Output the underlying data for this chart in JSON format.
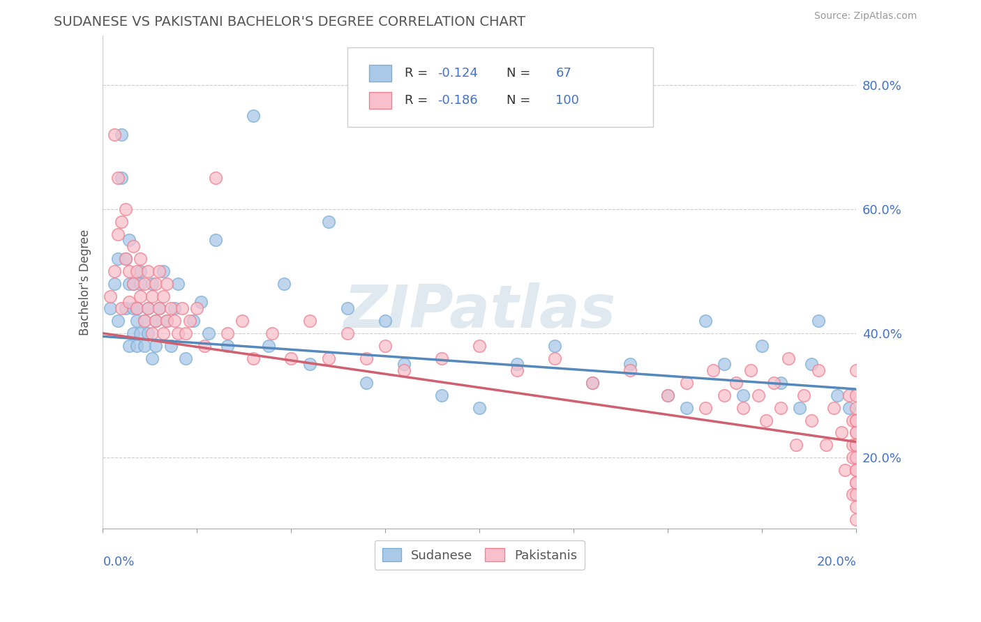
{
  "title": "SUDANESE VS PAKISTANI BACHELOR'S DEGREE CORRELATION CHART",
  "source": "Source: ZipAtlas.com",
  "ylabel": "Bachelor's Degree",
  "watermark": "ZIPatlas",
  "blue_color": "#7bafd4",
  "pink_color": "#f08090",
  "blue_scatter_face": "#aac8e8",
  "blue_scatter_edge": "#7bafd4",
  "pink_scatter_face": "#f8c0cc",
  "pink_scatter_edge": "#f08090",
  "blue_line_color": "#5588bb",
  "pink_line_color": "#d06070",
  "title_color": "#555555",
  "axis_label_color": "#4472c4",
  "text_color": "#555555",
  "grid_color": "#cccccc",
  "legend_color": "#4472c4",
  "R_blue": "-0.124",
  "N_blue": "67",
  "R_pink": "-0.186",
  "N_pink": "100",
  "legend_blue_label": "Sudanese",
  "legend_pink_label": "Pakistanis",
  "xlim": [
    0.0,
    0.2
  ],
  "ylim": [
    0.085,
    0.88
  ],
  "yticks": [
    0.2,
    0.4,
    0.6,
    0.8
  ],
  "xticks": [
    0.0,
    0.025,
    0.05,
    0.075,
    0.1,
    0.125,
    0.15,
    0.175,
    0.2
  ],
  "blue_line_x": [
    0.0,
    0.2
  ],
  "blue_line_y": [
    0.395,
    0.31
  ],
  "pink_line_x": [
    0.0,
    0.2
  ],
  "pink_line_y": [
    0.4,
    0.225
  ],
  "blue_x": [
    0.002,
    0.003,
    0.004,
    0.004,
    0.005,
    0.005,
    0.006,
    0.006,
    0.007,
    0.007,
    0.007,
    0.008,
    0.008,
    0.008,
    0.009,
    0.009,
    0.009,
    0.01,
    0.01,
    0.01,
    0.011,
    0.011,
    0.012,
    0.012,
    0.013,
    0.013,
    0.014,
    0.014,
    0.015,
    0.016,
    0.017,
    0.018,
    0.019,
    0.02,
    0.022,
    0.024,
    0.026,
    0.028,
    0.03,
    0.033,
    0.04,
    0.044,
    0.048,
    0.055,
    0.06,
    0.065,
    0.07,
    0.075,
    0.08,
    0.09,
    0.1,
    0.11,
    0.12,
    0.13,
    0.14,
    0.15,
    0.155,
    0.16,
    0.165,
    0.17,
    0.175,
    0.18,
    0.185,
    0.188,
    0.19,
    0.195,
    0.198
  ],
  "blue_y": [
    0.44,
    0.48,
    0.42,
    0.52,
    0.65,
    0.72,
    0.44,
    0.52,
    0.48,
    0.38,
    0.55,
    0.44,
    0.4,
    0.48,
    0.42,
    0.38,
    0.44,
    0.48,
    0.4,
    0.5,
    0.42,
    0.38,
    0.44,
    0.4,
    0.36,
    0.48,
    0.42,
    0.38,
    0.44,
    0.5,
    0.42,
    0.38,
    0.44,
    0.48,
    0.36,
    0.42,
    0.45,
    0.4,
    0.55,
    0.38,
    0.75,
    0.38,
    0.48,
    0.35,
    0.58,
    0.44,
    0.32,
    0.42,
    0.35,
    0.3,
    0.28,
    0.35,
    0.38,
    0.32,
    0.35,
    0.3,
    0.28,
    0.42,
    0.35,
    0.3,
    0.38,
    0.32,
    0.28,
    0.35,
    0.42,
    0.3,
    0.28
  ],
  "pink_x": [
    0.002,
    0.003,
    0.003,
    0.004,
    0.004,
    0.005,
    0.005,
    0.006,
    0.006,
    0.007,
    0.007,
    0.008,
    0.008,
    0.009,
    0.009,
    0.01,
    0.01,
    0.011,
    0.011,
    0.012,
    0.012,
    0.013,
    0.013,
    0.014,
    0.014,
    0.015,
    0.015,
    0.016,
    0.016,
    0.017,
    0.017,
    0.018,
    0.019,
    0.02,
    0.021,
    0.022,
    0.023,
    0.025,
    0.027,
    0.03,
    0.033,
    0.037,
    0.04,
    0.045,
    0.05,
    0.055,
    0.06,
    0.065,
    0.07,
    0.075,
    0.08,
    0.09,
    0.1,
    0.11,
    0.12,
    0.13,
    0.14,
    0.15,
    0.155,
    0.16,
    0.162,
    0.165,
    0.168,
    0.17,
    0.172,
    0.174,
    0.176,
    0.178,
    0.18,
    0.182,
    0.184,
    0.186,
    0.188,
    0.19,
    0.192,
    0.194,
    0.196,
    0.197,
    0.198,
    0.199,
    0.199,
    0.199,
    0.199,
    0.2,
    0.2,
    0.2,
    0.2,
    0.2,
    0.2,
    0.2,
    0.2,
    0.2,
    0.2,
    0.2,
    0.2,
    0.2,
    0.2,
    0.2,
    0.2,
    0.2
  ],
  "pink_y": [
    0.46,
    0.5,
    0.72,
    0.56,
    0.65,
    0.58,
    0.44,
    0.52,
    0.6,
    0.5,
    0.45,
    0.48,
    0.54,
    0.44,
    0.5,
    0.46,
    0.52,
    0.42,
    0.48,
    0.44,
    0.5,
    0.4,
    0.46,
    0.42,
    0.48,
    0.44,
    0.5,
    0.4,
    0.46,
    0.42,
    0.48,
    0.44,
    0.42,
    0.4,
    0.44,
    0.4,
    0.42,
    0.44,
    0.38,
    0.65,
    0.4,
    0.42,
    0.36,
    0.4,
    0.36,
    0.42,
    0.36,
    0.4,
    0.36,
    0.38,
    0.34,
    0.36,
    0.38,
    0.34,
    0.36,
    0.32,
    0.34,
    0.3,
    0.32,
    0.28,
    0.34,
    0.3,
    0.32,
    0.28,
    0.34,
    0.3,
    0.26,
    0.32,
    0.28,
    0.36,
    0.22,
    0.3,
    0.26,
    0.34,
    0.22,
    0.28,
    0.24,
    0.18,
    0.3,
    0.22,
    0.26,
    0.14,
    0.2,
    0.24,
    0.18,
    0.3,
    0.14,
    0.22,
    0.26,
    0.2,
    0.34,
    0.16,
    0.24,
    0.12,
    0.28,
    0.18,
    0.22,
    0.1,
    0.26,
    0.16
  ]
}
